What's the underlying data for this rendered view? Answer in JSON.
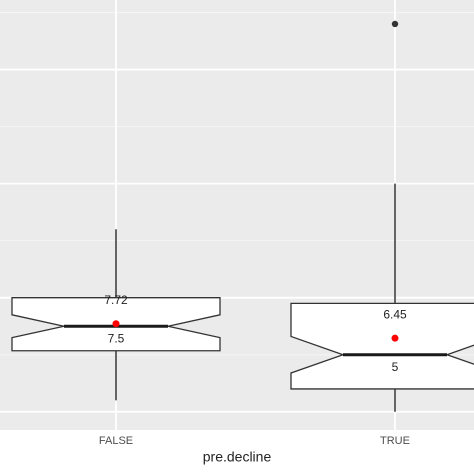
{
  "chart_data": {
    "type": "boxplot",
    "x_label": "pre.decline",
    "categories": [
      "FALSE",
      "TRUE"
    ],
    "series": [
      {
        "whislo": 1,
        "q1": 5.35,
        "notch_lo": 6.5,
        "med": 7.5,
        "notch_hi": 8.5,
        "q3": 10,
        "whishi": 16,
        "mean": 7.72,
        "outliers": []
      },
      {
        "whislo": 0,
        "q1": 2,
        "notch_lo": 3.4,
        "med": 5,
        "notch_hi": 6.6,
        "q3": 9.5,
        "whishi": 20,
        "mean": 6.45,
        "outliers": [
          34
        ]
      }
    ],
    "ylim": [
      -1.6,
      36.1
    ],
    "yticks": [
      0,
      10,
      20,
      30
    ],
    "minor_yticks": [
      5,
      15,
      25,
      35
    ],
    "grid": true,
    "box_color": "#ffffff",
    "mean_color": "#ff0000",
    "outlier_color": "#333333"
  }
}
